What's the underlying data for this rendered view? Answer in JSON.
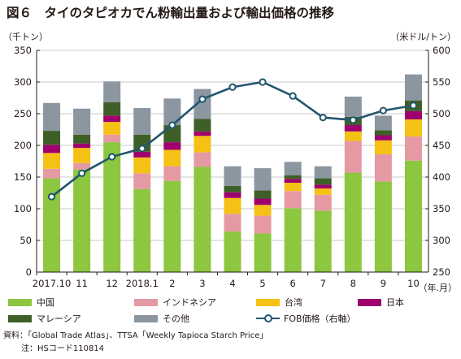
{
  "title": "図６　タイのタピオカでん粉輸出量および輸出価格の推移",
  "unit_left": "（千トン）",
  "unit_right": "（米ドル/トン）",
  "x_unit": "（年.月）",
  "source": "資料：「Global Trade Atlas」、TTSA「Weekly Tapioca Starch Price」",
  "note": "注：HSコード110814",
  "chart_data": {
    "type": "bar",
    "stacked": true,
    "categories": [
      "2017.10",
      "11",
      "12",
      "2018.1",
      "2",
      "3",
      "4",
      "5",
      "6",
      "7",
      "8",
      "9",
      "10"
    ],
    "y_left": {
      "min": 0,
      "max": 350,
      "ticks": [
        0,
        50,
        100,
        150,
        200,
        250,
        300,
        350
      ]
    },
    "y_right": {
      "min": 250,
      "max": 600,
      "ticks": [
        250,
        300,
        350,
        400,
        450,
        500,
        550,
        600
      ]
    },
    "grid": true,
    "legend_position": "bottom",
    "series": [
      {
        "name": "中国",
        "color": "#8dc63f",
        "values": [
          148,
          162,
          205,
          131,
          144,
          166,
          64,
          61,
          101,
          97,
          157,
          143,
          176
        ]
      },
      {
        "name": "インドネシア",
        "color": "#e59aa3",
        "values": [
          15,
          10,
          12,
          25,
          23,
          23,
          28,
          28,
          27,
          25,
          50,
          43,
          38
        ]
      },
      {
        "name": "台湾",
        "color": "#f5c115",
        "values": [
          25,
          24,
          20,
          25,
          26,
          26,
          25,
          17,
          13,
          10,
          15,
          22,
          27
        ]
      },
      {
        "name": "日本",
        "color": "#a0006e",
        "values": [
          13,
          7,
          10,
          9,
          12,
          7,
          9,
          10,
          6,
          6,
          10,
          8,
          13
        ]
      },
      {
        "name": "マレーシア",
        "color": "#3f5f28",
        "values": [
          22,
          14,
          21,
          27,
          27,
          20,
          10,
          13,
          6,
          10,
          13,
          8,
          17
        ]
      },
      {
        "name": "その他",
        "color": "#8c96a0",
        "values": [
          44,
          41,
          33,
          42,
          42,
          47,
          31,
          35,
          21,
          19,
          32,
          23,
          41
        ]
      }
    ],
    "line": {
      "name": "FOB価格（右軸）",
      "color": "#22566e",
      "axis": "right",
      "values": [
        369,
        406,
        432,
        445,
        482,
        523,
        542,
        550,
        528,
        494,
        490,
        505,
        513
      ]
    }
  }
}
